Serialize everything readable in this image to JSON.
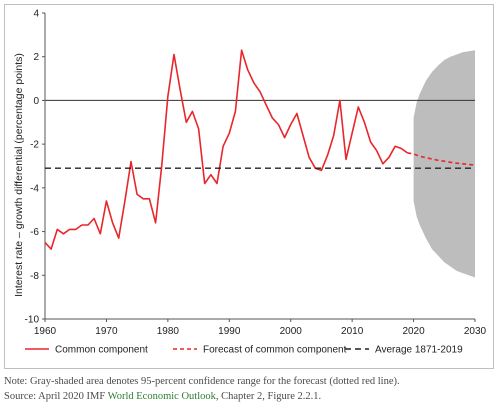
{
  "chart_data": {
    "type": "line",
    "title": "",
    "xlabel": "",
    "ylabel": "Interest rate – growth differential (percentage points)",
    "xlim": [
      1960,
      2030
    ],
    "ylim": [
      -10,
      4
    ],
    "x_ticks": [
      "1960",
      "1970",
      "1980",
      "1990",
      "2000",
      "2010",
      "2020",
      "2030"
    ],
    "y_ticks": [
      "4",
      "2",
      "0",
      "-2",
      "-4",
      "-6",
      "-8",
      "-10"
    ],
    "grid": false,
    "legend_position": "bottom",
    "series": [
      {
        "name": "Common component",
        "color": "#e8262b",
        "style": "solid",
        "points": [
          [
            1960,
            -6.5
          ],
          [
            1961,
            -6.8
          ],
          [
            1962,
            -5.9
          ],
          [
            1963,
            -6.1
          ],
          [
            1964,
            -5.9
          ],
          [
            1965,
            -5.9
          ],
          [
            1966,
            -5.7
          ],
          [
            1967,
            -5.7
          ],
          [
            1968,
            -5.4
          ],
          [
            1969,
            -6.1
          ],
          [
            1970,
            -4.6
          ],
          [
            1971,
            -5.6
          ],
          [
            1972,
            -6.3
          ],
          [
            1973,
            -4.6
          ],
          [
            1974,
            -2.8
          ],
          [
            1975,
            -4.3
          ],
          [
            1976,
            -4.5
          ],
          [
            1977,
            -4.5
          ],
          [
            1978,
            -5.6
          ],
          [
            1979,
            -3.0
          ],
          [
            1980,
            0.2
          ],
          [
            1981,
            2.1
          ],
          [
            1982,
            0.5
          ],
          [
            1983,
            -1.0
          ],
          [
            1984,
            -0.5
          ],
          [
            1985,
            -1.3
          ],
          [
            1986,
            -3.8
          ],
          [
            1987,
            -3.4
          ],
          [
            1988,
            -3.8
          ],
          [
            1989,
            -2.1
          ],
          [
            1990,
            -1.5
          ],
          [
            1991,
            -0.5
          ],
          [
            1992,
            2.3
          ],
          [
            1993,
            1.4
          ],
          [
            1994,
            0.8
          ],
          [
            1995,
            0.4
          ],
          [
            1996,
            -0.2
          ],
          [
            1997,
            -0.8
          ],
          [
            1998,
            -1.1
          ],
          [
            1999,
            -1.7
          ],
          [
            2000,
            -1.1
          ],
          [
            2001,
            -0.6
          ],
          [
            2002,
            -1.6
          ],
          [
            2003,
            -2.6
          ],
          [
            2004,
            -3.1
          ],
          [
            2005,
            -3.2
          ],
          [
            2006,
            -2.5
          ],
          [
            2007,
            -1.6
          ],
          [
            2008,
            0.0
          ],
          [
            2009,
            -2.7
          ],
          [
            2010,
            -1.5
          ],
          [
            2011,
            -0.3
          ],
          [
            2012,
            -1.0
          ],
          [
            2013,
            -1.9
          ],
          [
            2014,
            -2.3
          ],
          [
            2015,
            -2.9
          ],
          [
            2016,
            -2.6
          ],
          [
            2017,
            -2.1
          ],
          [
            2018,
            -2.2
          ],
          [
            2019,
            -2.4
          ]
        ]
      },
      {
        "name": "Forecast of common component",
        "color": "#e8262b",
        "style": "dashed",
        "points": [
          [
            2019,
            -2.4
          ],
          [
            2020,
            -2.45
          ],
          [
            2021,
            -2.55
          ],
          [
            2022,
            -2.62
          ],
          [
            2023,
            -2.68
          ],
          [
            2024,
            -2.74
          ],
          [
            2025,
            -2.78
          ],
          [
            2026,
            -2.83
          ],
          [
            2027,
            -2.87
          ],
          [
            2028,
            -2.9
          ],
          [
            2029,
            -2.93
          ],
          [
            2030,
            -2.95
          ]
        ]
      },
      {
        "name": "Average 1871-2019",
        "color": "#222222",
        "style": "dashed",
        "points": [
          [
            1960,
            -3.1
          ],
          [
            2030,
            -3.1
          ]
        ]
      }
    ],
    "confidence_band": {
      "color": "#bdbdbd",
      "description_x": [
        2020,
        2030
      ],
      "upper": [
        [
          2020,
          -0.8
        ],
        [
          2020.5,
          -0.1
        ],
        [
          2021,
          0.3
        ],
        [
          2022,
          0.9
        ],
        [
          2023,
          1.3
        ],
        [
          2024,
          1.6
        ],
        [
          2025,
          1.85
        ],
        [
          2026,
          2.0
        ],
        [
          2027,
          2.1
        ],
        [
          2028,
          2.2
        ],
        [
          2029,
          2.25
        ],
        [
          2030,
          2.3
        ]
      ],
      "lower": [
        [
          2020,
          -4.6
        ],
        [
          2020.5,
          -5.3
        ],
        [
          2021,
          -5.7
        ],
        [
          2022,
          -6.3
        ],
        [
          2023,
          -6.8
        ],
        [
          2024,
          -7.1
        ],
        [
          2025,
          -7.4
        ],
        [
          2026,
          -7.6
        ],
        [
          2027,
          -7.8
        ],
        [
          2028,
          -7.9
        ],
        [
          2029,
          -8.0
        ],
        [
          2030,
          -8.1
        ]
      ]
    },
    "reference_line_y": 0
  },
  "notes": {
    "line1": "Note: Gray-shaded area denotes 95-percent confidence range for the forecast (dotted red line).",
    "source_prefix": "Source: April 2020 IMF ",
    "source_link": "World Economic Outlook",
    "source_suffix": ", Chapter 2, Figure 2.2.1."
  }
}
